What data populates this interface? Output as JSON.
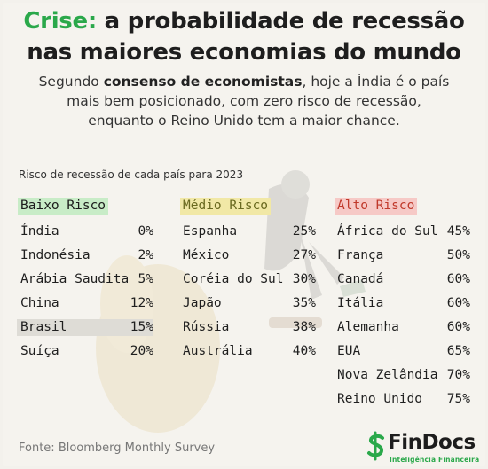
{
  "title": {
    "accent": "Crise:",
    "line1_rest": " a probabilidade de recessão",
    "line2": "nas maiores economias do mundo"
  },
  "subtitle": {
    "l1_a": "Segundo ",
    "l1_b": "consenso de economistas",
    "l1_c": ", hoje a Índia é o país",
    "l2": "mais bem posicionado, com zero risco de recessão,",
    "l3": "enquanto o Reino Unido tem a maior chance."
  },
  "caption": "Risco de recessão de cada país para 2023",
  "groups": [
    {
      "header": "Baixo Risco",
      "rows": [
        {
          "name": "Índia",
          "pct": "0%"
        },
        {
          "name": "Indonésia",
          "pct": "2%"
        },
        {
          "name": "Arábia Saudita",
          "pct": "5%"
        },
        {
          "name": "China",
          "pct": "12%"
        },
        {
          "name": "Brasil",
          "pct": "15%"
        },
        {
          "name": "Suíça",
          "pct": "20%"
        }
      ]
    },
    {
      "header": "Médio Risco",
      "rows": [
        {
          "name": "Espanha",
          "pct": "25%"
        },
        {
          "name": "México",
          "pct": "27%"
        },
        {
          "name": "Coréia do Sul",
          "pct": "30%"
        },
        {
          "name": "Japão",
          "pct": "35%"
        },
        {
          "name": "Rússia",
          "pct": "38%"
        },
        {
          "name": "Austrália",
          "pct": "40%"
        }
      ]
    },
    {
      "header": "Alto Risco",
      "rows": [
        {
          "name": "África do Sul",
          "pct": "45%"
        },
        {
          "name": "França",
          "pct": "50%"
        },
        {
          "name": "Canadá",
          "pct": "60%"
        },
        {
          "name": "Itália",
          "pct": "60%"
        },
        {
          "name": "Alemanha",
          "pct": "60%"
        },
        {
          "name": "EUA",
          "pct": "65%"
        },
        {
          "name": "Nova Zelândia",
          "pct": "70%"
        },
        {
          "name": "Reino Unido",
          "pct": "75%"
        }
      ]
    }
  ],
  "source": "Fonte: Bloomberg Monthly Survey",
  "logo": {
    "word": "FinDocs",
    "tagline": "Inteligência Financeira"
  },
  "colors": {
    "accent_green": "#2aa84a",
    "low_risk_bg": "#c8ecc7",
    "mid_risk_bg": "#f1e8a6",
    "high_risk_bg": "#f6c9c6",
    "high_risk_text": "#c0392b",
    "highlight_row_bg": "#dedcd6"
  },
  "icons": [
    "findocs-logo-icon",
    "falling-businessman-illustration"
  ]
}
